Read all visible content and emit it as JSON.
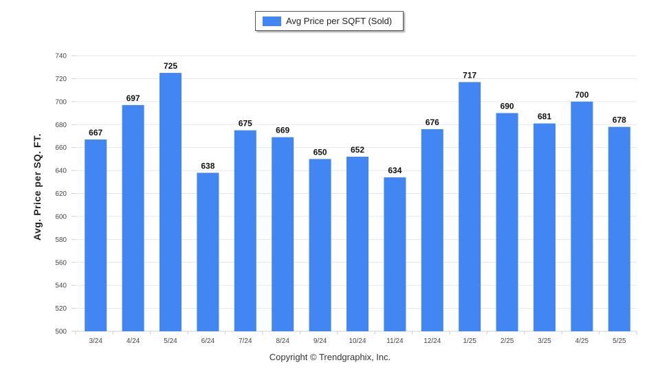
{
  "chart_data": {
    "type": "bar",
    "title": "",
    "legend": {
      "entries": [
        "Avg Price per SQFT (Sold)"
      ],
      "placement": "top-center"
    },
    "xlabel": "",
    "ylabel": "Avg. Price per SQ. FT.",
    "ylim": [
      500,
      740
    ],
    "yticks": [
      500,
      520,
      540,
      560,
      580,
      600,
      620,
      640,
      660,
      680,
      700,
      720,
      740
    ],
    "grid": true,
    "categories": [
      "3/24",
      "4/24",
      "5/24",
      "6/24",
      "7/24",
      "8/24",
      "9/24",
      "10/24",
      "11/24",
      "12/24",
      "1/25",
      "2/25",
      "3/25",
      "4/25",
      "5/25"
    ],
    "series": [
      {
        "name": "Avg Price per SQFT (Sold)",
        "color": "#4286f4",
        "values": [
          667,
          697,
          725,
          638,
          675,
          669,
          650,
          652,
          634,
          676,
          717,
          690,
          681,
          700,
          678
        ]
      }
    ]
  },
  "footer": {
    "text": "Copyright © Trendgraphix, Inc."
  }
}
